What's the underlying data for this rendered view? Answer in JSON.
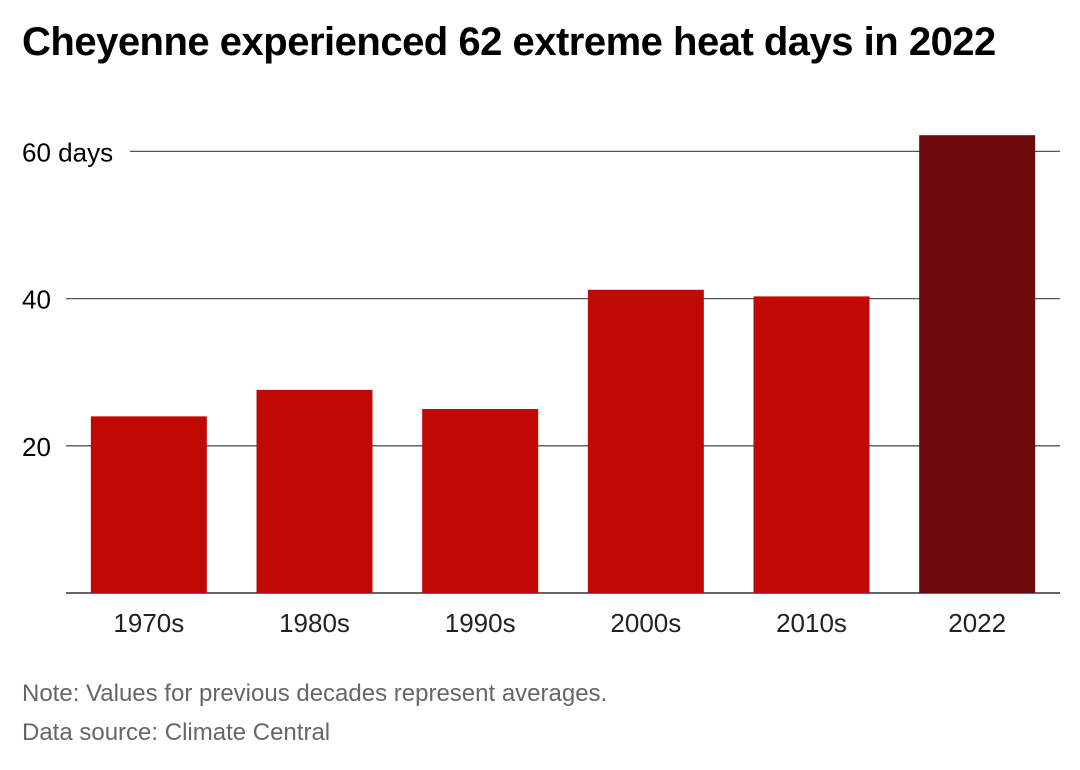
{
  "title": "Cheyenne experienced 62 extreme heat days in 2022",
  "notes": {
    "note": "Note: Values for previous decades represent averages.",
    "source": "Data source: Climate Central"
  },
  "colors": {
    "bar": "#c00905",
    "highlight": "#6b090b",
    "grid": "#555555",
    "axis": "#333333"
  },
  "chart_data": {
    "type": "bar",
    "title": "Cheyenne experienced 62 extreme heat days in 2022",
    "categories": [
      "1970s",
      "1980s",
      "1990s",
      "2000s",
      "2010s",
      "2022"
    ],
    "values": [
      24,
      27.6,
      25,
      41.2,
      40.3,
      62.2
    ],
    "highlight_index": 5,
    "ylim": [
      0,
      62.5
    ],
    "yticks": [
      {
        "value": 20,
        "label": "20"
      },
      {
        "value": 40,
        "label": "40"
      },
      {
        "value": 60,
        "label": "60 days"
      }
    ],
    "xlabel": "",
    "ylabel": "",
    "grid": true,
    "legend": "none"
  }
}
